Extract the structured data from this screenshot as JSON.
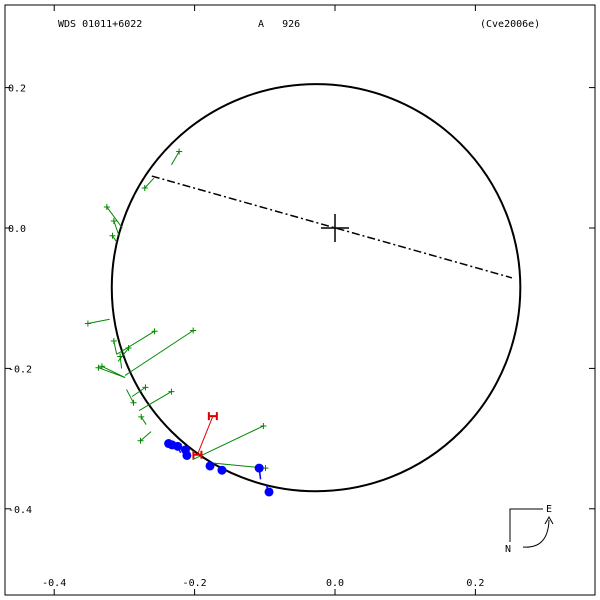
{
  "header": {
    "system": "WDS 01011+6022",
    "pair": "A   926",
    "reference": "(Cve2006e)"
  },
  "compass": {
    "east_label": "E",
    "north_label": "N"
  },
  "colors": {
    "ellipse": "#000000",
    "line_of_nodes": "#000000",
    "micrometer": "#008800",
    "speckle": "#0000ff",
    "hipparcos": "#dd0000"
  },
  "chart_data": {
    "type": "scatter",
    "xlim": [
      -0.44,
      0.37
    ],
    "ylim": [
      -0.52,
      0.3
    ],
    "x_ticks": [
      {
        "value": -0.4,
        "label": "-0.4"
      },
      {
        "value": -0.2,
        "label": "-0.2"
      },
      {
        "value": 0.0,
        "label": "0.0"
      },
      {
        "value": 0.2,
        "label": "0.2"
      }
    ],
    "y_ticks": [
      {
        "value": 0.2,
        "label": "0.2"
      },
      {
        "value": 0.0,
        "label": "0.0"
      },
      {
        "value": -0.2,
        "label": "-0.2"
      },
      {
        "value": -0.4,
        "label": "-0.4"
      }
    ],
    "orbit_ellipse": {
      "center": [
        -0.027,
        -0.085
      ],
      "rx": 0.291,
      "ry": 0.29
    },
    "primary_star": [
      0.0,
      0.0
    ],
    "line_of_nodes": [
      [
        -0.261,
        0.074
      ],
      [
        0.252,
        -0.071
      ]
    ],
    "micrometer": [
      {
        "obs": [
          -0.222,
          0.109
        ],
        "fit": [
          -0.233,
          0.09
        ]
      },
      {
        "obs": [
          -0.271,
          0.057
        ],
        "fit": [
          -0.258,
          0.071
        ]
      },
      {
        "obs": [
          -0.325,
          0.03
        ],
        "fit": [
          -0.303,
          0.0
        ]
      },
      {
        "obs": [
          -0.315,
          0.01
        ],
        "fit": [
          -0.308,
          -0.01
        ]
      },
      {
        "obs": [
          -0.317,
          -0.011
        ],
        "fit": [
          -0.311,
          -0.02
        ]
      },
      {
        "obs": [
          -0.352,
          -0.136
        ],
        "fit": [
          -0.321,
          -0.13
        ]
      },
      {
        "obs": [
          -0.257,
          -0.147
        ],
        "fit": [
          -0.311,
          -0.18
        ]
      },
      {
        "obs": [
          -0.315,
          -0.161
        ],
        "fit": [
          -0.311,
          -0.18
        ]
      },
      {
        "obs": [
          -0.294,
          -0.171
        ],
        "fit": [
          -0.309,
          -0.19
        ]
      },
      {
        "obs": [
          -0.306,
          -0.183
        ],
        "fit": [
          -0.304,
          -0.2
        ]
      },
      {
        "obs": [
          -0.202,
          -0.146
        ],
        "fit": [
          -0.299,
          -0.21
        ]
      },
      {
        "obs": [
          -0.332,
          -0.197
        ],
        "fit": [
          -0.299,
          -0.213
        ]
      },
      {
        "obs": [
          -0.337,
          -0.199
        ],
        "fit": [
          -0.299,
          -0.213
        ]
      },
      {
        "obs": [
          -0.27,
          -0.227
        ],
        "fit": [
          -0.289,
          -0.24
        ]
      },
      {
        "obs": [
          -0.233,
          -0.233
        ],
        "fit": [
          -0.279,
          -0.26
        ]
      },
      {
        "obs": [
          -0.287,
          -0.249
        ],
        "fit": [
          -0.297,
          -0.23
        ]
      },
      {
        "obs": [
          -0.276,
          -0.269
        ],
        "fit": [
          -0.269,
          -0.28
        ]
      },
      {
        "obs": [
          -0.277,
          -0.303
        ],
        "fit": [
          -0.262,
          -0.29
        ]
      },
      {
        "obs": [
          -0.102,
          -0.282
        ],
        "fit": [
          -0.203,
          -0.33
        ]
      },
      {
        "obs": [
          -0.227,
          -0.311
        ],
        "fit": [
          -0.224,
          -0.315
        ]
      },
      {
        "obs": [
          -0.099,
          -0.342
        ],
        "fit": [
          -0.173,
          -0.335
        ]
      }
    ],
    "speckle": [
      {
        "obs": [
          -0.237,
          -0.307
        ],
        "fit": [
          -0.232,
          -0.31
        ]
      },
      {
        "obs": [
          -0.232,
          -0.309
        ],
        "fit": [
          -0.23,
          -0.31
        ]
      },
      {
        "obs": [
          -0.224,
          -0.311
        ],
        "fit": [
          -0.22,
          -0.32
        ]
      },
      {
        "obs": [
          -0.213,
          -0.316
        ],
        "fit": [
          -0.212,
          -0.322
        ]
      },
      {
        "obs": [
          -0.211,
          -0.324
        ],
        "fit": [
          -0.206,
          -0.325
        ]
      },
      {
        "obs": [
          -0.178,
          -0.339
        ],
        "fit": [
          -0.178,
          -0.34
        ]
      },
      {
        "obs": [
          -0.161,
          -0.345
        ],
        "fit": [
          -0.162,
          -0.346
        ]
      },
      {
        "obs": [
          -0.108,
          -0.342
        ],
        "fit": [
          -0.106,
          -0.358
        ]
      },
      {
        "obs": [
          -0.094,
          -0.376
        ],
        "fit": [
          -0.098,
          -0.366
        ]
      }
    ],
    "hipparcos": [
      {
        "obs": [
          -0.174,
          -0.268
        ],
        "fit": [
          -0.196,
          -0.323
        ]
      },
      {
        "obs": [
          -0.196,
          -0.323
        ],
        "fit": [
          -0.196,
          -0.323
        ]
      }
    ]
  }
}
